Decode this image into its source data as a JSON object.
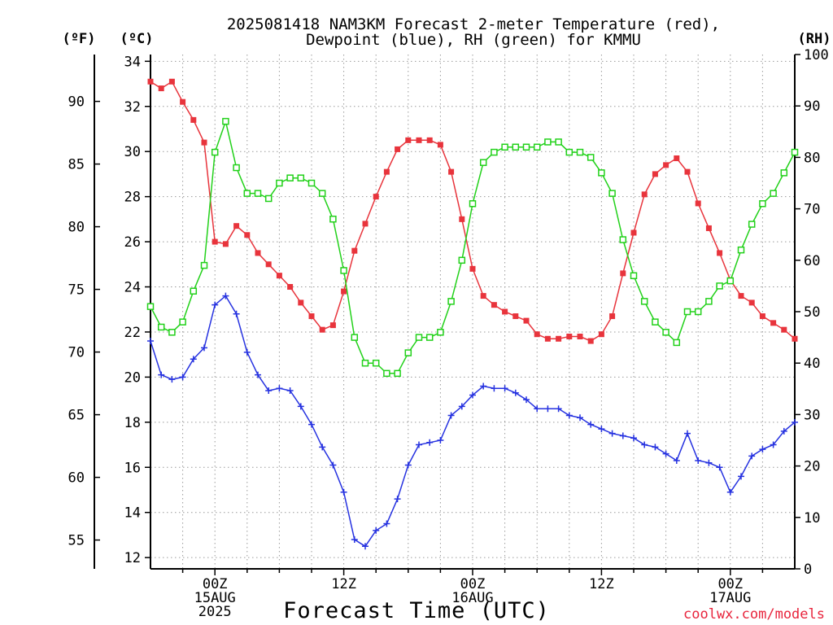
{
  "chart_data": {
    "type": "line",
    "title_lines": [
      "2025081418 NAM3KM Forecast 2-meter Temperature (red),",
      "Dewpoint (blue), RH (green) for KMMU"
    ],
    "xlabel": "Forecast Time (UTC)",
    "credit": "coolwx.com/models",
    "units": {
      "fahrenheit": "(ºF)",
      "celsius": "(ºC)",
      "rh": "(RH)"
    },
    "x_range_hours": [
      -6,
      54
    ],
    "x_ticks": [
      {
        "hour": 0,
        "labels": [
          "00Z",
          "15AUG",
          "2025"
        ]
      },
      {
        "hour": 12,
        "labels": [
          "12Z"
        ]
      },
      {
        "hour": 24,
        "labels": [
          "00Z",
          "16AUG"
        ]
      },
      {
        "hour": 36,
        "labels": [
          "12Z"
        ]
      },
      {
        "hour": 48,
        "labels": [
          "00Z",
          "17AUG"
        ]
      }
    ],
    "y_celsius": {
      "range": [
        11.5,
        34.3
      ],
      "ticks": [
        12,
        14,
        16,
        18,
        20,
        22,
        24,
        26,
        28,
        30,
        32,
        34
      ]
    },
    "y_fahrenheit": {
      "ticks": [
        55,
        60,
        65,
        70,
        75,
        80,
        85,
        90
      ]
    },
    "y_rh": {
      "range": [
        0,
        100
      ],
      "ticks": [
        0,
        10,
        20,
        30,
        40,
        50,
        60,
        70,
        80,
        90,
        100
      ]
    },
    "x_hours": [
      -6,
      -5,
      -4,
      -3,
      -2,
      -1,
      0,
      1,
      2,
      3,
      4,
      5,
      6,
      7,
      8,
      9,
      10,
      11,
      12,
      13,
      14,
      15,
      16,
      17,
      18,
      19,
      20,
      21,
      22,
      23,
      24,
      25,
      26,
      27,
      28,
      29,
      30,
      31,
      32,
      33,
      34,
      35,
      36,
      37,
      38,
      39,
      40,
      41,
      42,
      43,
      44,
      45,
      46,
      47,
      48,
      49,
      50,
      51,
      52,
      53,
      54
    ],
    "series": [
      {
        "name": "2-meter Temperature",
        "color": "#e8343c",
        "axis": "celsius",
        "marker": "filled-square",
        "values": [
          33.1,
          32.8,
          33.1,
          32.2,
          31.4,
          30.4,
          26.0,
          25.9,
          26.7,
          26.3,
          25.5,
          25.0,
          24.5,
          24.0,
          23.3,
          22.7,
          22.1,
          22.3,
          23.8,
          25.6,
          26.8,
          28.0,
          29.1,
          30.1,
          30.5,
          30.5,
          30.5,
          30.3,
          29.1,
          27.0,
          24.8,
          23.6,
          23.2,
          22.9,
          22.7,
          22.5,
          21.9,
          21.7,
          21.7,
          21.8,
          21.8,
          21.6,
          21.9,
          22.7,
          24.6,
          26.4,
          28.1,
          29.0,
          29.4,
          29.7,
          29.1,
          27.7,
          26.6,
          25.5,
          24.3,
          23.6,
          23.3,
          22.7,
          22.4,
          22.1,
          21.7
        ]
      },
      {
        "name": "Dewpoint",
        "color": "#2632e0",
        "axis": "celsius",
        "marker": "plus",
        "values": [
          21.6,
          20.1,
          19.9,
          20.0,
          20.8,
          21.3,
          23.2,
          23.6,
          22.8,
          21.1,
          20.1,
          19.4,
          19.5,
          19.4,
          18.7,
          17.9,
          16.9,
          16.1,
          14.9,
          12.8,
          12.5,
          13.2,
          13.5,
          14.6,
          16.1,
          17.0,
          17.1,
          17.2,
          18.3,
          18.7,
          19.2,
          19.6,
          19.5,
          19.5,
          19.3,
          19.0,
          18.6,
          18.6,
          18.6,
          18.3,
          18.2,
          17.9,
          17.7,
          17.5,
          17.4,
          17.3,
          17.0,
          16.9,
          16.6,
          16.3,
          17.5,
          16.3,
          16.2,
          16.0,
          14.9,
          15.6,
          16.5,
          16.8,
          17.0,
          17.6,
          18.0
        ]
      },
      {
        "name": "RH",
        "color": "#22d11a",
        "axis": "rh",
        "marker": "open-square",
        "values": [
          51,
          47,
          46,
          48,
          54,
          59,
          81,
          87,
          78,
          73,
          73,
          72,
          75,
          76,
          76,
          75,
          73,
          68,
          58,
          45,
          40,
          40,
          38,
          38,
          42,
          45,
          45,
          46,
          52,
          60,
          71,
          79,
          81,
          82,
          82,
          82,
          82,
          83,
          83,
          81,
          81,
          80,
          77,
          73,
          64,
          57,
          52,
          48,
          46,
          44,
          50,
          50,
          52,
          55,
          56,
          62,
          67,
          71,
          73,
          77,
          81
        ]
      }
    ]
  }
}
